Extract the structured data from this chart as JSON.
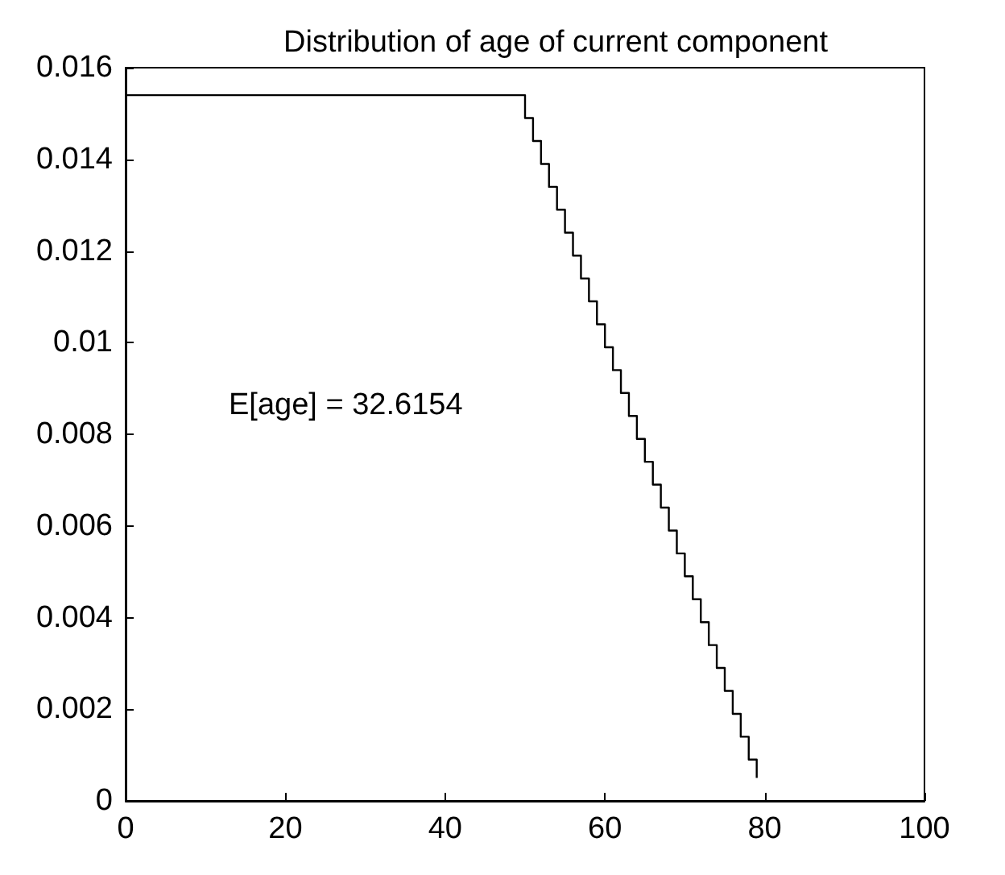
{
  "chart_data": {
    "type": "step",
    "title": "Distribution of age of current component",
    "x": [
      0,
      50,
      51,
      52,
      53,
      54,
      55,
      56,
      57,
      58,
      59,
      60,
      61,
      62,
      63,
      64,
      65,
      66,
      67,
      68,
      69,
      70,
      71,
      72,
      73,
      74,
      75,
      76,
      77,
      78,
      79
    ],
    "values": [
      0.0154,
      0.0149,
      0.0144,
      0.0139,
      0.0134,
      0.0129,
      0.0124,
      0.0119,
      0.0114,
      0.0109,
      0.0104,
      0.0099,
      0.0094,
      0.0089,
      0.0084,
      0.0079,
      0.0074,
      0.0069,
      0.0064,
      0.0059,
      0.0054,
      0.0049,
      0.0044,
      0.0039,
      0.0034,
      0.0029,
      0.0024,
      0.0019,
      0.0014,
      0.0009,
      0.0005
    ],
    "color": "#000000",
    "xlim": [
      0,
      100
    ],
    "xticks": [
      0,
      20,
      40,
      60,
      80,
      100
    ],
    "ylim": [
      0,
      0.016
    ],
    "yticks": [
      0,
      0.002,
      0.004,
      0.006,
      0.008,
      0.01,
      0.012,
      0.014,
      0.016
    ],
    "annotations": [
      "E[age] = 32.6154"
    ],
    "grid": false,
    "marker": "none",
    "line_style": "solid"
  }
}
